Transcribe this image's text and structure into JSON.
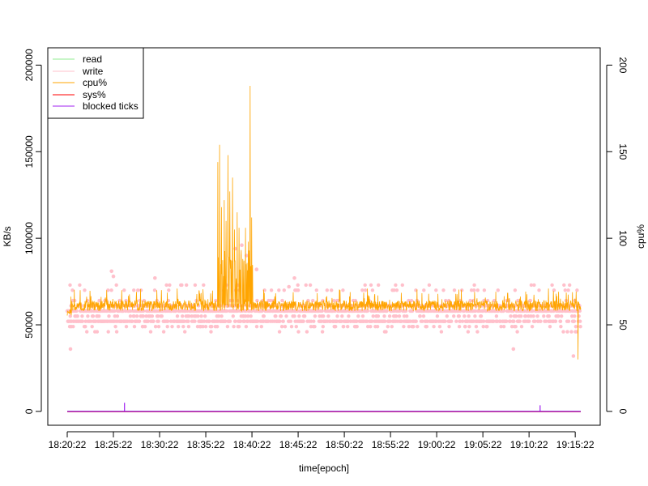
{
  "chart_data": {
    "type": "line",
    "title": "",
    "xlabel": "time[epoch]",
    "ylabel": "KB/s",
    "ylabel_right": "cpu%",
    "x_range_minutes": [
      0,
      56
    ],
    "x_ticks": [
      {
        "label": "18:20:22",
        "t": 0
      },
      {
        "label": "18:25:22",
        "t": 5
      },
      {
        "label": "18:30:22",
        "t": 10
      },
      {
        "label": "18:35:22",
        "t": 15
      },
      {
        "label": "18:40:22",
        "t": 20
      },
      {
        "label": "18:45:22",
        "t": 25
      },
      {
        "label": "18:50:22",
        "t": 30
      },
      {
        "label": "18:55:22",
        "t": 35
      },
      {
        "label": "19:00:22",
        "t": 40
      },
      {
        "label": "19:05:22",
        "t": 45
      },
      {
        "label": "19:10:22",
        "t": 50
      },
      {
        "label": "19:15:22",
        "t": 55
      }
    ],
    "ylim_left": [
      -8000,
      210000
    ],
    "yticks_left": [
      0,
      50000,
      100000,
      150000,
      200000
    ],
    "ylim_right": [
      -8,
      210
    ],
    "yticks_right": [
      0,
      50,
      100,
      150,
      200
    ],
    "legend_position": "top-left",
    "series": [
      {
        "name": "read",
        "color": "#90ee90",
        "axis": "left",
        "kind": "line",
        "approx_value": 0
      },
      {
        "name": "write",
        "color": "#ffc0cb",
        "axis": "left",
        "kind": "points",
        "levels": [
          46000,
          49000,
          52000,
          55000,
          58000,
          61000,
          64000,
          67000,
          70000,
          73000
        ],
        "outliers": [
          [
            0.35,
            36000
          ],
          [
            4.8,
            81000
          ],
          [
            5.0,
            78000
          ],
          [
            18.2,
            94000
          ],
          [
            18.9,
            96000
          ],
          [
            19.4,
            90000
          ],
          [
            20.5,
            82000
          ],
          [
            9.5,
            77000
          ],
          [
            24.6,
            77000
          ],
          [
            24.0,
            72000
          ],
          [
            43.2,
            61000
          ],
          [
            48.3,
            36000
          ],
          [
            54.8,
            32000
          ]
        ]
      },
      {
        "name": "cpu%",
        "color": "#ffa500",
        "axis": "right",
        "kind": "line",
        "baseline": 61,
        "spikes": [
          {
            "t": 16.3,
            "v": 144
          },
          {
            "t": 16.5,
            "v": 154
          },
          {
            "t": 16.7,
            "v": 118
          },
          {
            "t": 17.0,
            "v": 122
          },
          {
            "t": 17.2,
            "v": 110
          },
          {
            "t": 17.4,
            "v": 148
          },
          {
            "t": 17.6,
            "v": 127
          },
          {
            "t": 17.9,
            "v": 135
          },
          {
            "t": 18.1,
            "v": 105
          },
          {
            "t": 18.4,
            "v": 115
          },
          {
            "t": 18.6,
            "v": 106
          },
          {
            "t": 18.8,
            "v": 90
          },
          {
            "t": 19.0,
            "v": 88
          },
          {
            "t": 19.3,
            "v": 106
          },
          {
            "t": 19.6,
            "v": 98
          },
          {
            "t": 19.8,
            "v": 188
          },
          {
            "t": 19.95,
            "v": 112
          },
          {
            "t": 55.3,
            "v": 30
          }
        ]
      },
      {
        "name": "sys%",
        "color": "#ff0000",
        "axis": "right",
        "kind": "line",
        "approx_value": 0
      },
      {
        "name": "blocked ticks",
        "color": "#a020f0",
        "axis": "left",
        "kind": "line",
        "approx_value": 0,
        "spikes": [
          {
            "t": 6.2,
            "v": 5000
          },
          {
            "t": 51.2,
            "v": 3500
          }
        ]
      }
    ]
  }
}
